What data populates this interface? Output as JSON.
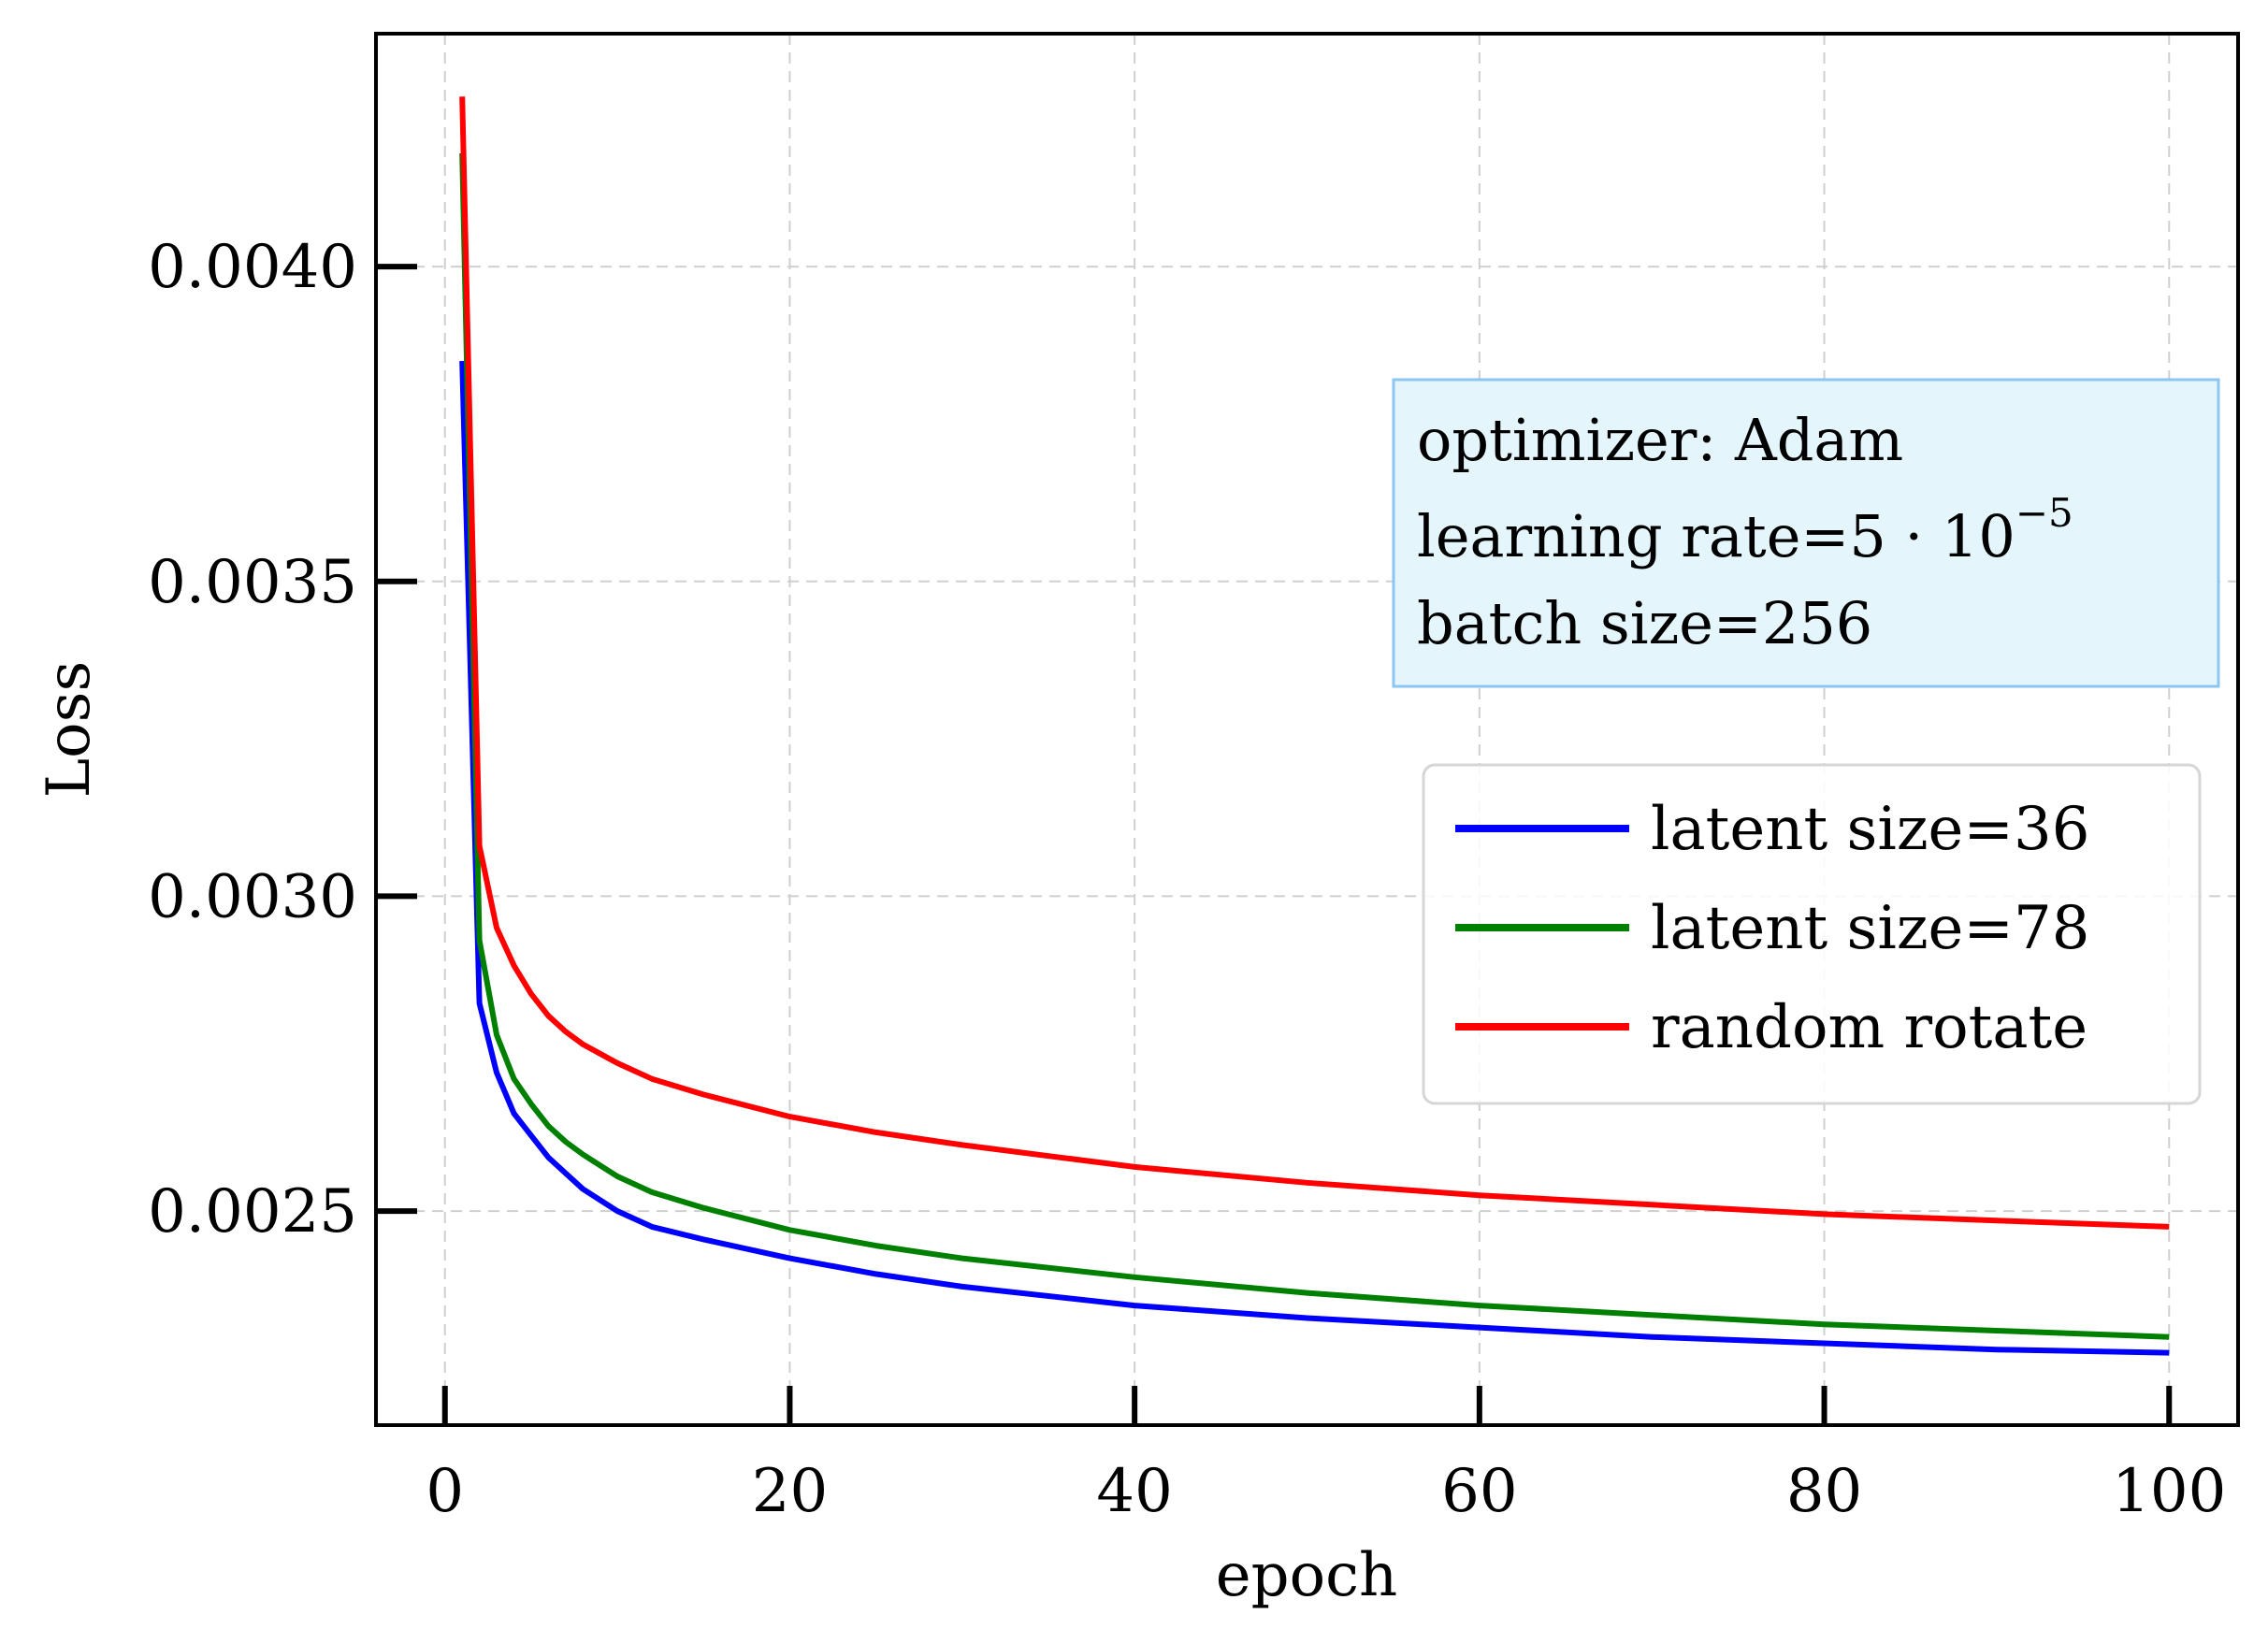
{
  "chart_data": {
    "type": "line",
    "xlabel": "epoch",
    "ylabel": "Loss",
    "xlim": [
      -4,
      104
    ],
    "ylim": [
      0.00216,
      0.00437
    ],
    "xticks": [
      0,
      20,
      40,
      60,
      80,
      100
    ],
    "xtick_labels": [
      "0",
      "20",
      "40",
      "60",
      "80",
      "100"
    ],
    "yticks": [
      0.0025,
      0.003,
      0.0035,
      0.004
    ],
    "ytick_labels": [
      "0.0025",
      "0.0030",
      "0.0035",
      "0.0040"
    ],
    "grid": true,
    "legend_position": "center-right",
    "annotation": {
      "line1": "optimizer: Adam",
      "line2_prefix": "learning rate=5 · 10",
      "line2_exponent": "−5",
      "line3": "batch size=256",
      "fill": "#e4f6fc",
      "border": "#8cc6f2"
    },
    "series": [
      {
        "name": "latent size=36",
        "color": "#0000ff",
        "x": [
          1,
          2,
          3,
          4,
          5,
          6,
          7,
          8,
          10,
          12,
          15,
          20,
          25,
          30,
          40,
          50,
          60,
          70,
          80,
          90,
          100
        ],
        "y": [
          0.00385,
          0.00283,
          0.00272,
          0.002655,
          0.00262,
          0.002585,
          0.00256,
          0.002535,
          0.0025,
          0.002475,
          0.002455,
          0.002425,
          0.0024,
          0.00238,
          0.00235,
          0.00233,
          0.002315,
          0.0023,
          0.00229,
          0.00228,
          0.002275
        ]
      },
      {
        "name": "latent size=78",
        "color": "#008000",
        "x": [
          1,
          2,
          3,
          4,
          5,
          6,
          7,
          8,
          10,
          12,
          15,
          20,
          25,
          30,
          40,
          50,
          60,
          70,
          80,
          90,
          100
        ],
        "y": [
          0.00418,
          0.00293,
          0.00278,
          0.00271,
          0.00267,
          0.002635,
          0.00261,
          0.00259,
          0.002555,
          0.00253,
          0.002505,
          0.00247,
          0.002445,
          0.002425,
          0.002395,
          0.00237,
          0.00235,
          0.002335,
          0.00232,
          0.00231,
          0.0023
        ]
      },
      {
        "name": "random rotate",
        "color": "#ff0000",
        "x": [
          1,
          2,
          3,
          4,
          5,
          6,
          7,
          8,
          10,
          12,
          15,
          20,
          25,
          30,
          40,
          50,
          60,
          70,
          80,
          90,
          100
        ],
        "y": [
          0.00427,
          0.00308,
          0.00295,
          0.00289,
          0.002845,
          0.00281,
          0.002785,
          0.002765,
          0.002735,
          0.00271,
          0.002685,
          0.00265,
          0.002625,
          0.002605,
          0.00257,
          0.002545,
          0.002525,
          0.00251,
          0.002495,
          0.002485,
          0.002475
        ]
      }
    ]
  }
}
